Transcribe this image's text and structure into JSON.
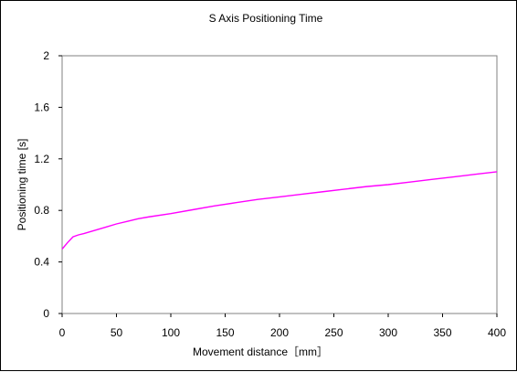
{
  "chart_data": {
    "type": "line",
    "title": "S Axis Positioning Time",
    "xlabel": "Movement distance［mm］",
    "ylabel": "Positioning time [s]",
    "xlim": [
      0,
      400
    ],
    "ylim": [
      0,
      2
    ],
    "x_ticks": [
      0,
      50,
      100,
      150,
      200,
      250,
      300,
      350,
      400
    ],
    "y_ticks": [
      0,
      0.4,
      0.8,
      1.2,
      1.6,
      2
    ],
    "x_tick_labels": [
      "0",
      "50",
      "100",
      "150",
      "200",
      "250",
      "300",
      "350",
      "400"
    ],
    "y_tick_labels": [
      "0",
      "0.4",
      "0.8",
      "1.2",
      "1.6",
      "2"
    ],
    "grid": false,
    "line_color": "#ff00ff",
    "series": [
      {
        "x": [
          0,
          5,
          10,
          15,
          20,
          30,
          40,
          50,
          60,
          70,
          80,
          100,
          120,
          140,
          160,
          180,
          200,
          220,
          240,
          260,
          280,
          300,
          320,
          340,
          360,
          380,
          400
        ],
        "values": [
          0.5,
          0.55,
          0.595,
          0.61,
          0.62,
          0.645,
          0.67,
          0.695,
          0.715,
          0.735,
          0.75,
          0.775,
          0.805,
          0.835,
          0.86,
          0.885,
          0.905,
          0.925,
          0.945,
          0.965,
          0.985,
          1.0,
          1.02,
          1.04,
          1.06,
          1.08,
          1.1
        ]
      }
    ]
  }
}
